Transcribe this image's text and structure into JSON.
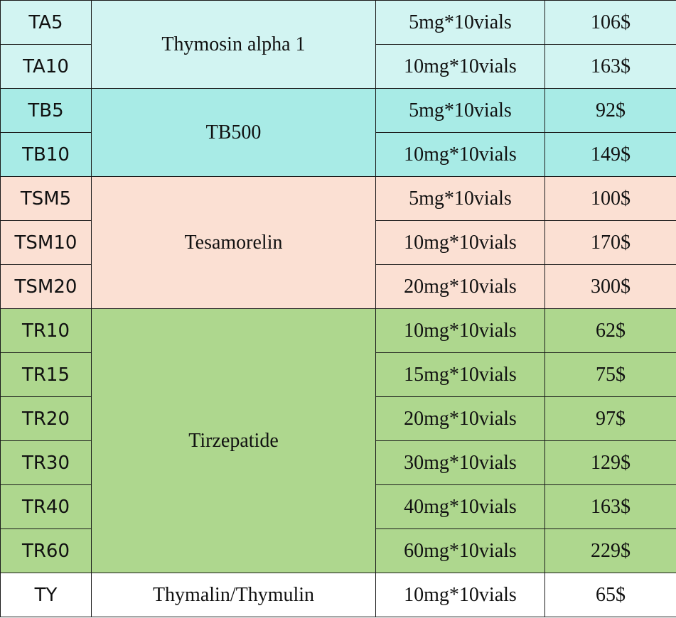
{
  "groups": [
    {
      "name": "Thymosin alpha 1",
      "color": "#d2f4f2",
      "rows": [
        {
          "code": "TA5",
          "spec": "5mg*10vials",
          "price": "106$"
        },
        {
          "code": "TA10",
          "spec": "10mg*10vials",
          "price": "163$"
        }
      ]
    },
    {
      "name": "TB500",
      "color": "#a8ebe6",
      "rows": [
        {
          "code": "TB5",
          "spec": "5mg*10vials",
          "price": "92$"
        },
        {
          "code": "TB10",
          "spec": "10mg*10vials",
          "price": "149$"
        }
      ]
    },
    {
      "name": "Tesamorelin",
      "color": "#fbe0d3",
      "rows": [
        {
          "code": "TSM5",
          "spec": "5mg*10vials",
          "price": "100$"
        },
        {
          "code": "TSM10",
          "spec": "10mg*10vials",
          "price": "170$"
        },
        {
          "code": "TSM20",
          "spec": "20mg*10vials",
          "price": "300$"
        }
      ]
    },
    {
      "name": "Tirzepatide",
      "color": "#aed78e",
      "rows": [
        {
          "code": "TR10",
          "spec": "10mg*10vials",
          "price": "62$"
        },
        {
          "code": "TR15",
          "spec": "15mg*10vials",
          "price": "75$"
        },
        {
          "code": "TR20",
          "spec": "20mg*10vials",
          "price": "97$"
        },
        {
          "code": "TR30",
          "spec": "30mg*10vials",
          "price": "129$"
        },
        {
          "code": "TR40",
          "spec": "40mg*10vials",
          "price": "163$"
        },
        {
          "code": "TR60",
          "spec": "60mg*10vials",
          "price": "229$"
        }
      ]
    },
    {
      "name": "Thymalin/Thymulin",
      "color": "#ffffff",
      "rows": [
        {
          "code": "TY",
          "spec": "10mg*10vials",
          "price": "65$"
        }
      ]
    }
  ]
}
